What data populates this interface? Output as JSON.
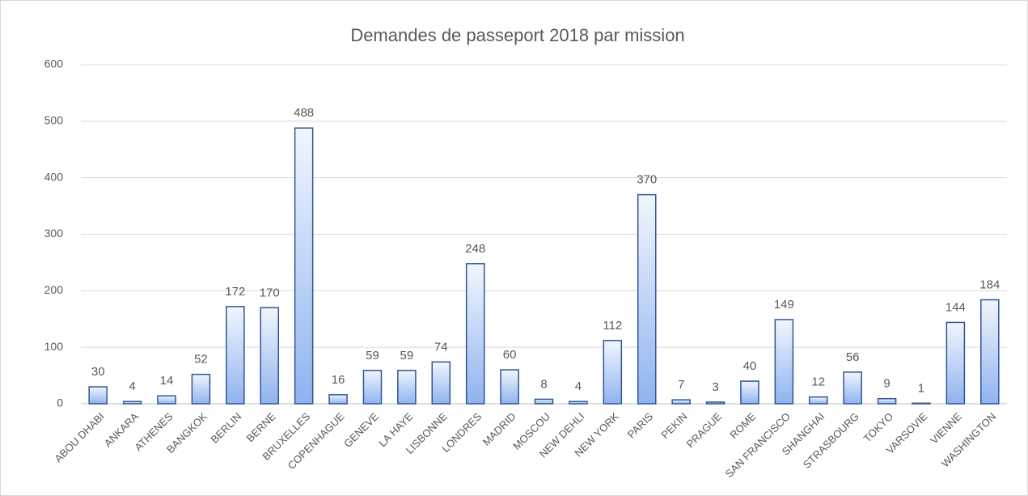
{
  "chart_data": {
    "type": "bar",
    "title": "Demandes de passeport 2018 par mission",
    "categories": [
      "ABOU DHABI",
      "ANKARA",
      "ATHENES",
      "BANGKOK",
      "BERLIN",
      "BERNE",
      "BRUXELLES",
      "COPENHAGUE",
      "GENEVE",
      "LA HAYE",
      "LISBONNE",
      "LONDRES",
      "MADRID",
      "MOSCOU",
      "NEW DEHLI",
      "NEW YORK",
      "PARIS",
      "PEKIN",
      "PRAGUE",
      "ROME",
      "SAN FRANCISCO",
      "SHANGHAI",
      "STRASBOURG",
      "TOKYO",
      "VARSOVIE",
      "VIENNE",
      "WASHINGTON"
    ],
    "values": [
      30,
      4,
      14,
      52,
      172,
      170,
      488,
      16,
      59,
      59,
      74,
      248,
      60,
      8,
      4,
      112,
      370,
      7,
      3,
      40,
      149,
      12,
      56,
      9,
      1,
      144,
      184
    ],
    "color": "#2f5597",
    "ylim": [
      0,
      600
    ],
    "yticks": [
      0,
      100,
      200,
      300,
      400,
      500,
      600
    ],
    "grid": true
  }
}
